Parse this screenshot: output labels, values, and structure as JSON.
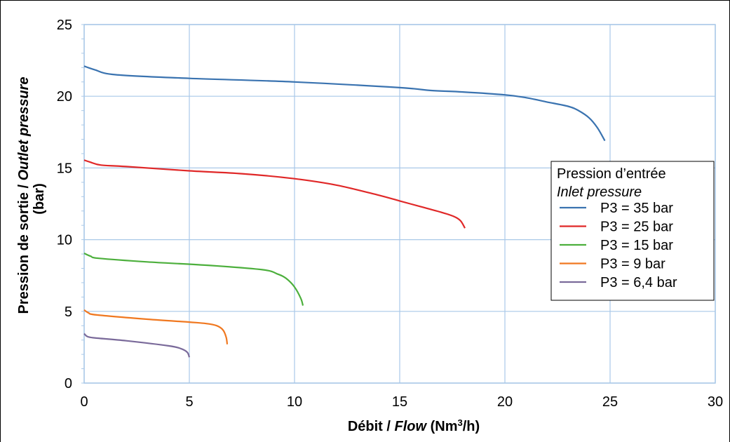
{
  "chart_data": {
    "type": "line",
    "xlabel": {
      "part1": "Débit / ",
      "part2": "Flow",
      "part3": " (Nm",
      "sup": "3",
      "part4": "/h)"
    },
    "ylabel": {
      "line1_part1": "Pression de sortie / ",
      "line1_part2": "Outlet pressure",
      "line2": "(bar)"
    },
    "xlim": [
      0,
      30
    ],
    "ylim": [
      0,
      25
    ],
    "x_ticks": [
      0,
      5,
      10,
      15,
      20,
      25,
      30
    ],
    "y_ticks": [
      0,
      5,
      10,
      15,
      20,
      25
    ],
    "grid": true,
    "legend": {
      "title_line1": "Pression d’entrée",
      "title_line2": "Inlet pressure",
      "placement": "right"
    },
    "series": [
      {
        "name": "P3 = 35 bar",
        "color": "#3a73b0",
        "points": [
          [
            0,
            22.1
          ],
          [
            0.5,
            21.85
          ],
          [
            1.5,
            21.5
          ],
          [
            5,
            21.25
          ],
          [
            10,
            21.0
          ],
          [
            15,
            20.6
          ],
          [
            16.5,
            20.4
          ],
          [
            18,
            20.3
          ],
          [
            20,
            20.1
          ],
          [
            21,
            19.9
          ],
          [
            22,
            19.6
          ],
          [
            23,
            19.3
          ],
          [
            23.5,
            19.0
          ],
          [
            24,
            18.5
          ],
          [
            24.4,
            17.8
          ],
          [
            24.75,
            16.9
          ]
        ]
      },
      {
        "name": "P3 = 25 bar",
        "color": "#e02828",
        "points": [
          [
            0,
            15.55
          ],
          [
            0.3,
            15.4
          ],
          [
            0.8,
            15.2
          ],
          [
            2,
            15.1
          ],
          [
            5,
            14.8
          ],
          [
            7.5,
            14.6
          ],
          [
            10,
            14.25
          ],
          [
            12,
            13.8
          ],
          [
            14,
            13.1
          ],
          [
            15,
            12.7
          ],
          [
            16,
            12.3
          ],
          [
            17,
            11.9
          ],
          [
            17.6,
            11.6
          ],
          [
            17.9,
            11.3
          ],
          [
            18.1,
            10.8
          ]
        ]
      },
      {
        "name": "P3 = 15 bar",
        "color": "#4caf3c",
        "points": [
          [
            0,
            9.05
          ],
          [
            0.3,
            8.85
          ],
          [
            0.7,
            8.7
          ],
          [
            3,
            8.45
          ],
          [
            6,
            8.2
          ],
          [
            8.5,
            7.9
          ],
          [
            9.2,
            7.6
          ],
          [
            9.6,
            7.3
          ],
          [
            10,
            6.7
          ],
          [
            10.3,
            5.9
          ],
          [
            10.4,
            5.4
          ]
        ]
      },
      {
        "name": "P3 = 9 bar",
        "color": "#f07820",
        "points": [
          [
            0,
            5.1
          ],
          [
            0.2,
            4.9
          ],
          [
            0.6,
            4.75
          ],
          [
            3,
            4.45
          ],
          [
            5,
            4.25
          ],
          [
            5.8,
            4.15
          ],
          [
            6.3,
            4.0
          ],
          [
            6.6,
            3.7
          ],
          [
            6.75,
            3.2
          ],
          [
            6.8,
            2.7
          ]
        ]
      },
      {
        "name": "P3 = 6,4 bar",
        "color": "#7a6a9a",
        "points": [
          [
            0,
            3.45
          ],
          [
            0.15,
            3.25
          ],
          [
            0.5,
            3.15
          ],
          [
            2,
            2.95
          ],
          [
            4,
            2.6
          ],
          [
            4.6,
            2.4
          ],
          [
            4.9,
            2.15
          ],
          [
            5.0,
            1.8
          ]
        ]
      }
    ]
  }
}
